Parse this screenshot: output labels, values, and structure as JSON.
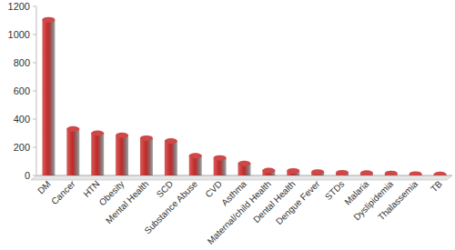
{
  "chart_data": {
    "type": "bar",
    "categories": [
      "DM",
      "Cancer",
      "HTN",
      "Obesity",
      "Mental Health",
      "SCD",
      "Substance Abuse",
      "CVD",
      "Asthma",
      "Maternal/child Health",
      "Dental Health",
      "Dengue Fever",
      "STDs",
      "Malaria",
      "Dyslipidemia",
      "Thalassemia",
      "TB"
    ],
    "values": [
      1105,
      330,
      300,
      285,
      265,
      245,
      140,
      125,
      85,
      35,
      33,
      25,
      20,
      17,
      15,
      10,
      8
    ],
    "color": "#c62828",
    "ylim": [
      0,
      1200
    ],
    "yticks": [
      0,
      200,
      400,
      600,
      800,
      1000,
      1200
    ],
    "grid": false
  }
}
